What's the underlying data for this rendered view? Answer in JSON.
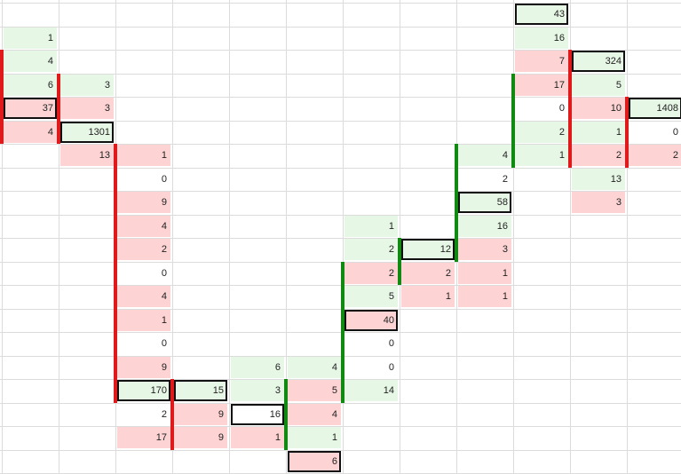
{
  "sheet": {
    "grid": {
      "columns": 12,
      "rows": 20
    },
    "colors": {
      "up": "#e7f7e5",
      "down": "#fdd3d3",
      "red_bar": "#e01a1a",
      "green_bar": "#108a10"
    },
    "cells": [
      {
        "c": 9,
        "r": 0,
        "v": "43",
        "fill": "green",
        "boxed": true
      },
      {
        "c": 0,
        "r": 1,
        "v": "1",
        "fill": "green"
      },
      {
        "c": 9,
        "r": 1,
        "v": "16",
        "fill": "green"
      },
      {
        "c": 0,
        "r": 2,
        "v": "4",
        "fill": "green"
      },
      {
        "c": 9,
        "r": 2,
        "v": "7",
        "fill": "red"
      },
      {
        "c": 10,
        "r": 2,
        "v": "324",
        "fill": "green",
        "boxed": true
      },
      {
        "c": 0,
        "r": 3,
        "v": "6",
        "fill": "green"
      },
      {
        "c": 1,
        "r": 3,
        "v": "3",
        "fill": "green"
      },
      {
        "c": 9,
        "r": 3,
        "v": "17",
        "fill": "red"
      },
      {
        "c": 10,
        "r": 3,
        "v": "5",
        "fill": "green"
      },
      {
        "c": 0,
        "r": 4,
        "v": "37",
        "fill": "red",
        "boxed": true
      },
      {
        "c": 1,
        "r": 4,
        "v": "3",
        "fill": "red"
      },
      {
        "c": 9,
        "r": 4,
        "v": "0",
        "fill": "white"
      },
      {
        "c": 10,
        "r": 4,
        "v": "10",
        "fill": "red"
      },
      {
        "c": 11,
        "r": 4,
        "v": "1408",
        "fill": "green",
        "boxed": true
      },
      {
        "c": 0,
        "r": 5,
        "v": "4",
        "fill": "red"
      },
      {
        "c": 1,
        "r": 5,
        "v": "1301",
        "fill": "green",
        "boxed": true
      },
      {
        "c": 9,
        "r": 5,
        "v": "2",
        "fill": "green"
      },
      {
        "c": 10,
        "r": 5,
        "v": "1",
        "fill": "green"
      },
      {
        "c": 11,
        "r": 5,
        "v": "0",
        "fill": "white"
      },
      {
        "c": 1,
        "r": 6,
        "v": "13",
        "fill": "red"
      },
      {
        "c": 2,
        "r": 6,
        "v": "1",
        "fill": "red"
      },
      {
        "c": 8,
        "r": 6,
        "v": "4",
        "fill": "green"
      },
      {
        "c": 9,
        "r": 6,
        "v": "1",
        "fill": "green"
      },
      {
        "c": 10,
        "r": 6,
        "v": "2",
        "fill": "red"
      },
      {
        "c": 11,
        "r": 6,
        "v": "2",
        "fill": "red"
      },
      {
        "c": 2,
        "r": 7,
        "v": "0",
        "fill": "white"
      },
      {
        "c": 8,
        "r": 7,
        "v": "2",
        "fill": "white"
      },
      {
        "c": 10,
        "r": 7,
        "v": "13",
        "fill": "green"
      },
      {
        "c": 2,
        "r": 8,
        "v": "9",
        "fill": "red"
      },
      {
        "c": 8,
        "r": 8,
        "v": "58",
        "fill": "green",
        "boxed": true
      },
      {
        "c": 10,
        "r": 8,
        "v": "3",
        "fill": "red"
      },
      {
        "c": 2,
        "r": 9,
        "v": "4",
        "fill": "red"
      },
      {
        "c": 6,
        "r": 9,
        "v": "1",
        "fill": "green"
      },
      {
        "c": 8,
        "r": 9,
        "v": "16",
        "fill": "green"
      },
      {
        "c": 2,
        "r": 10,
        "v": "2",
        "fill": "red"
      },
      {
        "c": 6,
        "r": 10,
        "v": "2",
        "fill": "green"
      },
      {
        "c": 7,
        "r": 10,
        "v": "12",
        "fill": "green",
        "boxed": true
      },
      {
        "c": 8,
        "r": 10,
        "v": "3",
        "fill": "red"
      },
      {
        "c": 2,
        "r": 11,
        "v": "0",
        "fill": "white"
      },
      {
        "c": 6,
        "r": 11,
        "v": "2",
        "fill": "red"
      },
      {
        "c": 7,
        "r": 11,
        "v": "2",
        "fill": "red"
      },
      {
        "c": 8,
        "r": 11,
        "v": "1",
        "fill": "red"
      },
      {
        "c": 2,
        "r": 12,
        "v": "4",
        "fill": "red"
      },
      {
        "c": 6,
        "r": 12,
        "v": "5",
        "fill": "green"
      },
      {
        "c": 7,
        "r": 12,
        "v": "1",
        "fill": "red"
      },
      {
        "c": 8,
        "r": 12,
        "v": "1",
        "fill": "red"
      },
      {
        "c": 2,
        "r": 13,
        "v": "1",
        "fill": "red"
      },
      {
        "c": 6,
        "r": 13,
        "v": "40",
        "fill": "red",
        "boxed": true
      },
      {
        "c": 2,
        "r": 14,
        "v": "0",
        "fill": "white"
      },
      {
        "c": 6,
        "r": 14,
        "v": "0",
        "fill": "white"
      },
      {
        "c": 2,
        "r": 15,
        "v": "9",
        "fill": "red"
      },
      {
        "c": 4,
        "r": 15,
        "v": "6",
        "fill": "green"
      },
      {
        "c": 5,
        "r": 15,
        "v": "4",
        "fill": "green"
      },
      {
        "c": 6,
        "r": 15,
        "v": "0",
        "fill": "white"
      },
      {
        "c": 2,
        "r": 16,
        "v": "170",
        "fill": "green",
        "boxed": true
      },
      {
        "c": 3,
        "r": 16,
        "v": "15",
        "fill": "green",
        "boxed": true
      },
      {
        "c": 4,
        "r": 16,
        "v": "3",
        "fill": "green"
      },
      {
        "c": 5,
        "r": 16,
        "v": "5",
        "fill": "red"
      },
      {
        "c": 6,
        "r": 16,
        "v": "14",
        "fill": "green"
      },
      {
        "c": 2,
        "r": 17,
        "v": "2",
        "fill": "white"
      },
      {
        "c": 3,
        "r": 17,
        "v": "9",
        "fill": "red"
      },
      {
        "c": 4,
        "r": 17,
        "v": "16",
        "fill": "white",
        "boxed": true
      },
      {
        "c": 5,
        "r": 17,
        "v": "4",
        "fill": "red"
      },
      {
        "c": 2,
        "r": 18,
        "v": "17",
        "fill": "red"
      },
      {
        "c": 3,
        "r": 18,
        "v": "9",
        "fill": "red"
      },
      {
        "c": 4,
        "r": 18,
        "v": "1",
        "fill": "red"
      },
      {
        "c": 5,
        "r": 18,
        "v": "1",
        "fill": "green"
      },
      {
        "c": 5,
        "r": 19,
        "v": "6",
        "fill": "red",
        "boxed": true
      }
    ],
    "bars": [
      {
        "c": 0,
        "r0": 2,
        "r1": 5,
        "color": "red"
      },
      {
        "c": 1,
        "r0": 3,
        "r1": 5,
        "color": "red"
      },
      {
        "c": 2,
        "r0": 6,
        "r1": 16,
        "color": "red"
      },
      {
        "c": 3,
        "r0": 16,
        "r1": 18,
        "color": "red"
      },
      {
        "c": 5,
        "r0": 16,
        "r1": 18,
        "color": "green"
      },
      {
        "c": 6,
        "r0": 11,
        "r1": 16,
        "color": "green"
      },
      {
        "c": 7,
        "r0": 10,
        "r1": 11,
        "color": "green"
      },
      {
        "c": 8,
        "r0": 6,
        "r1": 10,
        "color": "green"
      },
      {
        "c": 9,
        "r0": 3,
        "r1": 6,
        "color": "green"
      },
      {
        "c": 10,
        "r0": 2,
        "r1": 6,
        "color": "red"
      },
      {
        "c": 11,
        "r0": 4,
        "r1": 6,
        "color": "red"
      }
    ]
  }
}
